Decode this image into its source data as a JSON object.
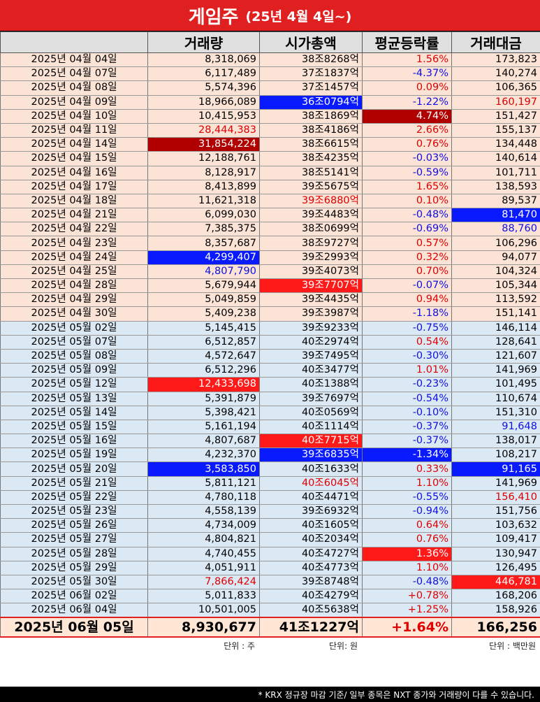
{
  "title": {
    "main": "게임주",
    "sub": "(25년 4월 4일~)"
  },
  "headers": [
    "",
    "거래량",
    "시가총액",
    "평균등락률",
    "거래대금"
  ],
  "colors": {
    "accent": "#e02020",
    "up": "#e00000",
    "down": "#1010e0",
    "highlight_blue": "#0a1aff"
  },
  "rows": [
    {
      "date": "2025년 04월 04일",
      "vol": "8,318,069",
      "cap": "38조8268억",
      "chg": "1.56%",
      "amt": "173,823",
      "p": "apr",
      "vc": "",
      "cc": "",
      "gc": "red",
      "ac": ""
    },
    {
      "date": "2025년 04월 07일",
      "vol": "6,117,489",
      "cap": "37조1837억",
      "chg": "-4.37%",
      "amt": "140,274",
      "p": "apr",
      "vc": "",
      "cc": "",
      "gc": "blue",
      "ac": ""
    },
    {
      "date": "2025년 04월 08일",
      "vol": "5,574,396",
      "cap": "37조1457억",
      "chg": "0.09%",
      "amt": "106,365",
      "p": "apr",
      "vc": "",
      "cc": "",
      "gc": "red",
      "ac": ""
    },
    {
      "date": "2025년 04월 09일",
      "vol": "18,966,089",
      "cap": "36조0794억",
      "chg": "-1.22%",
      "amt": "160,197",
      "p": "apr",
      "vc": "",
      "cc": "hl-blue",
      "gc": "blue",
      "ac": "red"
    },
    {
      "date": "2025년 04월 10일",
      "vol": "10,415,953",
      "cap": "38조1869억",
      "chg": "4.74%",
      "amt": "151,427",
      "p": "apr",
      "vc": "",
      "cc": "",
      "gc": "hl-dred",
      "ac": ""
    },
    {
      "date": "2025년 04월 11일",
      "vol": "28,444,383",
      "cap": "38조4186억",
      "chg": "2.66%",
      "amt": "155,137",
      "p": "apr",
      "vc": "red",
      "cc": "",
      "gc": "red",
      "ac": ""
    },
    {
      "date": "2025년 04월 14일",
      "vol": "31,854,224",
      "cap": "38조6615억",
      "chg": "0.76%",
      "amt": "134,448",
      "p": "apr",
      "vc": "hl-dred",
      "cc": "",
      "gc": "red",
      "ac": ""
    },
    {
      "date": "2025년 04월 15일",
      "vol": "12,188,761",
      "cap": "38조4235억",
      "chg": "-0.03%",
      "amt": "140,614",
      "p": "apr",
      "vc": "",
      "cc": "",
      "gc": "blue",
      "ac": ""
    },
    {
      "date": "2025년 04월 16일",
      "vol": "8,128,917",
      "cap": "38조5141억",
      "chg": "-0.59%",
      "amt": "101,711",
      "p": "apr",
      "vc": "",
      "cc": "",
      "gc": "blue",
      "ac": ""
    },
    {
      "date": "2025년 04월 17일",
      "vol": "8,413,899",
      "cap": "39조5675억",
      "chg": "1.65%",
      "amt": "138,593",
      "p": "apr",
      "vc": "",
      "cc": "",
      "gc": "red",
      "ac": ""
    },
    {
      "date": "2025년 04월 18일",
      "vol": "11,621,318",
      "cap": "39조6880억",
      "chg": "0.10%",
      "amt": "89,537",
      "p": "apr",
      "vc": "",
      "cc": "red",
      "gc": "red",
      "ac": ""
    },
    {
      "date": "2025년 04월 21일",
      "vol": "6,099,030",
      "cap": "39조4483억",
      "chg": "-0.48%",
      "amt": "81,470",
      "p": "apr",
      "vc": "",
      "cc": "",
      "gc": "blue",
      "ac": "hl-blue"
    },
    {
      "date": "2025년 04월 22일",
      "vol": "7,385,375",
      "cap": "38조0699억",
      "chg": "-0.69%",
      "amt": "88,760",
      "p": "apr",
      "vc": "",
      "cc": "",
      "gc": "blue",
      "ac": "blue"
    },
    {
      "date": "2025년 04월 23일",
      "vol": "8,357,687",
      "cap": "38조9727억",
      "chg": "0.57%",
      "amt": "106,296",
      "p": "apr",
      "vc": "",
      "cc": "",
      "gc": "red",
      "ac": ""
    },
    {
      "date": "2025년 04월 24일",
      "vol": "4,299,407",
      "cap": "39조2993억",
      "chg": "0.32%",
      "amt": "94,077",
      "p": "apr",
      "vc": "hl-blue",
      "cc": "",
      "gc": "red",
      "ac": ""
    },
    {
      "date": "2025년 04월 25일",
      "vol": "4,807,790",
      "cap": "39조4073억",
      "chg": "0.70%",
      "amt": "104,324",
      "p": "apr",
      "vc": "blue",
      "cc": "",
      "gc": "red",
      "ac": ""
    },
    {
      "date": "2025년 04월 28일",
      "vol": "5,679,944",
      "cap": "39조7707억",
      "chg": "-0.07%",
      "amt": "105,344",
      "p": "apr",
      "vc": "",
      "cc": "hl-red",
      "gc": "blue",
      "ac": ""
    },
    {
      "date": "2025년 04월 29일",
      "vol": "5,049,859",
      "cap": "39조4435억",
      "chg": "0.94%",
      "amt": "113,592",
      "p": "apr",
      "vc": "",
      "cc": "",
      "gc": "red",
      "ac": ""
    },
    {
      "date": "2025년 04월 30일",
      "vol": "5,409,238",
      "cap": "39조3987억",
      "chg": "-1.18%",
      "amt": "151,141",
      "p": "apr",
      "vc": "",
      "cc": "",
      "gc": "blue",
      "ac": ""
    },
    {
      "date": "2025년 05월 02일",
      "vol": "5,145,415",
      "cap": "39조9233억",
      "chg": "-0.75%",
      "amt": "146,114",
      "p": "may",
      "vc": "",
      "cc": "",
      "gc": "blue",
      "ac": ""
    },
    {
      "date": "2025년 05월 07일",
      "vol": "6,512,857",
      "cap": "40조2974억",
      "chg": "0.54%",
      "amt": "128,641",
      "p": "may",
      "vc": "",
      "cc": "",
      "gc": "red",
      "ac": ""
    },
    {
      "date": "2025년 05월 08일",
      "vol": "4,572,647",
      "cap": "39조7495억",
      "chg": "-0.30%",
      "amt": "121,607",
      "p": "may",
      "vc": "",
      "cc": "",
      "gc": "blue",
      "ac": ""
    },
    {
      "date": "2025년 05월 09일",
      "vol": "6,512,296",
      "cap": "40조3477억",
      "chg": "1.01%",
      "amt": "141,969",
      "p": "may",
      "vc": "",
      "cc": "",
      "gc": "red",
      "ac": ""
    },
    {
      "date": "2025년 05월 12일",
      "vol": "12,433,698",
      "cap": "40조1388억",
      "chg": "-0.23%",
      "amt": "101,495",
      "p": "may",
      "vc": "hl-red",
      "cc": "",
      "gc": "blue",
      "ac": ""
    },
    {
      "date": "2025년 05월 13일",
      "vol": "5,391,879",
      "cap": "39조7697억",
      "chg": "-0.54%",
      "amt": "110,674",
      "p": "may",
      "vc": "",
      "cc": "",
      "gc": "blue",
      "ac": ""
    },
    {
      "date": "2025년 05월 14일",
      "vol": "5,398,421",
      "cap": "40조0569억",
      "chg": "-0.10%",
      "amt": "151,310",
      "p": "may",
      "vc": "",
      "cc": "",
      "gc": "blue",
      "ac": ""
    },
    {
      "date": "2025년 05월 15일",
      "vol": "5,161,194",
      "cap": "40조1114억",
      "chg": "-0.37%",
      "amt": "91,648",
      "p": "may",
      "vc": "",
      "cc": "",
      "gc": "blue",
      "ac": "blue"
    },
    {
      "date": "2025년 05월 16일",
      "vol": "4,807,687",
      "cap": "40조7715억",
      "chg": "-0.37%",
      "amt": "138,017",
      "p": "may",
      "vc": "",
      "cc": "hl-red",
      "gc": "blue",
      "ac": ""
    },
    {
      "date": "2025년 05월 19일",
      "vol": "4,232,370",
      "cap": "39조6835억",
      "chg": "-1.34%",
      "amt": "108,217",
      "p": "may",
      "vc": "",
      "cc": "hl-blue",
      "gc": "hl-blue",
      "ac": ""
    },
    {
      "date": "2025년 05월 20일",
      "vol": "3,583,850",
      "cap": "40조1633억",
      "chg": "0.33%",
      "amt": "91,165",
      "p": "may",
      "vc": "hl-blue",
      "cc": "",
      "gc": "red",
      "ac": "hl-blue"
    },
    {
      "date": "2025년 05월 21일",
      "vol": "5,811,121",
      "cap": "40조6045억",
      "chg": "1.10%",
      "amt": "141,969",
      "p": "may",
      "vc": "",
      "cc": "red",
      "gc": "red",
      "ac": ""
    },
    {
      "date": "2025년 05월 22일",
      "vol": "4,780,118",
      "cap": "40조4471억",
      "chg": "-0.55%",
      "amt": "156,410",
      "p": "may",
      "vc": "",
      "cc": "",
      "gc": "blue",
      "ac": "red"
    },
    {
      "date": "2025년 05월 23일",
      "vol": "4,558,139",
      "cap": "39조6932억",
      "chg": "-0.94%",
      "amt": "151,756",
      "p": "may",
      "vc": "",
      "cc": "",
      "gc": "blue",
      "ac": ""
    },
    {
      "date": "2025년 05월 26일",
      "vol": "4,734,009",
      "cap": "40조1605억",
      "chg": "0.64%",
      "amt": "103,632",
      "p": "may",
      "vc": "",
      "cc": "",
      "gc": "red",
      "ac": ""
    },
    {
      "date": "2025년 05월 27일",
      "vol": "4,804,821",
      "cap": "40조2034억",
      "chg": "0.76%",
      "amt": "109,417",
      "p": "may",
      "vc": "",
      "cc": "",
      "gc": "red",
      "ac": ""
    },
    {
      "date": "2025년 05월 28일",
      "vol": "4,740,455",
      "cap": "40조4727억",
      "chg": "1.36%",
      "amt": "130,947",
      "p": "may",
      "vc": "",
      "cc": "",
      "gc": "hl-red",
      "ac": ""
    },
    {
      "date": "2025년 05월 29일",
      "vol": "4,051,911",
      "cap": "40조4773억",
      "chg": "1.10%",
      "amt": "126,495",
      "p": "may",
      "vc": "",
      "cc": "",
      "gc": "red",
      "ac": ""
    },
    {
      "date": "2025년 05월 30일",
      "vol": "7,866,424",
      "cap": "39조8748억",
      "chg": "-0.48%",
      "amt": "446,781",
      "p": "may",
      "vc": "red",
      "cc": "",
      "gc": "blue",
      "ac": "hl-red"
    },
    {
      "date": "2025년 06월 02일",
      "vol": "5,011,833",
      "cap": "40조4279억",
      "chg": "+0.78%",
      "amt": "168,206",
      "p": "may",
      "vc": "",
      "cc": "",
      "gc": "red",
      "ac": ""
    },
    {
      "date": "2025년 06월 04일",
      "vol": "10,501,005",
      "cap": "40조5638억",
      "chg": "+1.25%",
      "amt": "158,926",
      "p": "may",
      "vc": "",
      "cc": "",
      "gc": "red",
      "ac": ""
    }
  ],
  "total": {
    "date": "2025년 06월 05일",
    "vol": "8,930,677",
    "cap": "41조1227억",
    "chg": "+1.64%",
    "amt": "166,256"
  },
  "units": {
    "vol": "단위 : 주",
    "cap": "단위: 원",
    "amt": "단위 : 백만원"
  },
  "footer": "* KRX 정규장 마감 기준/ 일부 종목은 NXT 종가와 거래량이 다를 수 있습니다."
}
